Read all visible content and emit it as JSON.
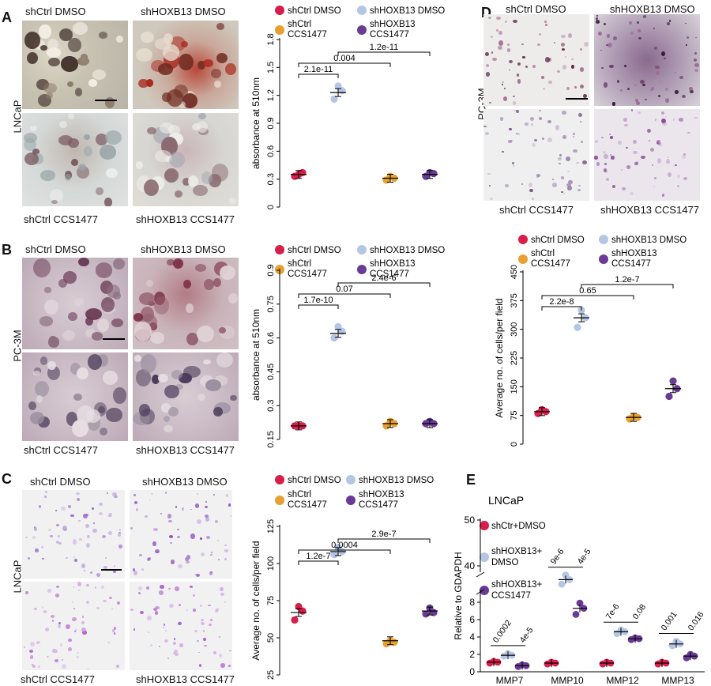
{
  "panels": {
    "A": "A",
    "B": "B",
    "C": "C",
    "D": "D",
    "E": "E"
  },
  "cell_lines": {
    "A": "LNCaP",
    "B": "PC-3M",
    "C": "LNCaP",
    "D": "PC-3M"
  },
  "photo_labels": {
    "ctrl_dmso": "shCtrl DMSO",
    "hox_dmso": "shHOXB13 DMSO",
    "ctrl_ccs": "shCtrl CCS1477",
    "hox_ccs": "shHOXB13 CCS1477"
  },
  "legend": {
    "ctrl_dmso": "shCtrl DMSO",
    "hox_dmso": "shHOXB13 DMSO",
    "ctrl_ccs_1": "shCtrl",
    "ctrl_ccs_2": "CCS1477",
    "hox_ccs_1": "shHOXB13",
    "hox_ccs_2": "CCS1477"
  },
  "legend_e": {
    "g1": "shCtr+DMSO",
    "g2a": "shHOXB13+",
    "g2b": "DMSO",
    "g3a": "shHOXB13+",
    "g3b": "CCS1477"
  },
  "colors": {
    "ctrl_dmso": "#d81e4a",
    "hox_dmso": "#b4c6e4",
    "ctrl_ccs": "#e8a030",
    "hox_ccs": "#6a3a96"
  },
  "chart_data": [
    {
      "id": "A",
      "type": "scatter",
      "ylabel": "absorbance at 510nm",
      "ylim": [
        0,
        1.8
      ],
      "ticks": [
        "0",
        "0.3",
        "0.6",
        "0.9",
        "1.2",
        "1.5",
        "1.8"
      ],
      "groups": [
        "shCtrl DMSO",
        "shHOXB13 DMSO",
        "shCtrl CCS1477",
        "shHOXB13 CCS1477"
      ],
      "means": [
        0.35,
        1.23,
        0.31,
        0.35
      ],
      "points": [
        [
          0.33,
          0.37,
          0.35
        ],
        [
          1.16,
          1.25,
          1.3
        ],
        [
          0.29,
          0.31,
          0.33
        ],
        [
          0.33,
          0.36,
          0.37
        ]
      ],
      "pvalues": [
        "2.1e-11",
        "0.004",
        "1.2e-11"
      ]
    },
    {
      "id": "B",
      "type": "scatter",
      "ylabel": "absorbance at 510nm",
      "ylim": [
        0.15,
        0.9
      ],
      "ticks": [
        "0.15",
        "0.3",
        "0.45",
        "0.6",
        "0.75",
        "0.9"
      ],
      "groups": [
        "shCtrl DMSO",
        "shHOXB13 DMSO",
        "shCtrl CCS1477",
        "shHOXB13 CCS1477"
      ],
      "means": [
        0.21,
        0.62,
        0.22,
        0.22
      ],
      "points": [
        [
          0.21,
          0.21,
          0.21
        ],
        [
          0.6,
          0.63,
          0.65
        ],
        [
          0.21,
          0.22,
          0.23
        ],
        [
          0.22,
          0.22,
          0.23
        ]
      ],
      "pvalues": [
        "1.7e-10",
        "0.07",
        "2.4e-6"
      ]
    },
    {
      "id": "C",
      "type": "scatter",
      "ylabel": "Average no. of cells/per field",
      "ylim": [
        25,
        125
      ],
      "ticks": [
        "25",
        "50",
        "75",
        "100",
        "125"
      ],
      "groups": [
        "shCtrl DMSO",
        "shHOXB13 DMSO",
        "shCtrl CCS1477",
        "shHOXB13 CCS1477"
      ],
      "means": [
        67,
        108,
        48,
        68
      ],
      "points": [
        [
          62,
          68,
          71
        ],
        [
          106,
          108,
          111
        ],
        [
          46,
          47,
          48
        ],
        [
          66,
          67,
          70
        ]
      ],
      "pvalues": [
        "1.2e-7",
        "0.0004",
        "2.9e-7"
      ]
    },
    {
      "id": "D",
      "type": "scatter",
      "ylabel": "Average no. of cells/per field",
      "ylim": [
        0,
        450
      ],
      "ticks": [
        "0",
        "75",
        "150",
        "225",
        "300",
        "375",
        "450"
      ],
      "groups": [
        "shCtrl DMSO",
        "shHOXB13 DMSO",
        "shCtrl CCS1477",
        "shHOXB13 CCS1477"
      ],
      "means": [
        85,
        330,
        70,
        145
      ],
      "points": [
        [
          80,
          85,
          90
        ],
        [
          305,
          330,
          350
        ],
        [
          66,
          70,
          72
        ],
        [
          125,
          145,
          165
        ]
      ],
      "pvalues": [
        "2.2e-8",
        "0.65",
        "1.2e-7"
      ]
    },
    {
      "id": "E",
      "type": "scatter",
      "title": "LNCaP",
      "ylabel": "Relative to GDAPDH",
      "lower_ticks": [
        "0",
        "2",
        "4",
        "6",
        "8"
      ],
      "upper_ticks": [
        "40",
        "50"
      ],
      "categories": [
        "MMP7",
        "MMP10",
        "MMP12",
        "MMP13"
      ],
      "groups": [
        "shCtr+DMSO",
        "shHOXB13+DMSO",
        "shHOXB13+CCS1477"
      ],
      "means": [
        [
          1.1,
          1.9,
          0.7
        ],
        [
          1.0,
          37,
          7.3
        ],
        [
          1.0,
          4.6,
          3.8
        ],
        [
          1.0,
          3.2,
          1.8
        ]
      ],
      "points": [
        [
          [
            1.0,
            1.1,
            1.2
          ],
          [
            1.8,
            1.9,
            2.1
          ],
          [
            0.6,
            0.7,
            0.8
          ]
        ],
        [
          [
            0.9,
            1.0,
            1.1
          ],
          [
            36,
            37,
            38
          ],
          [
            6.6,
            7.3,
            7.9
          ]
        ],
        [
          [
            0.9,
            1.0,
            1.1
          ],
          [
            4.4,
            4.6,
            4.8
          ],
          [
            3.7,
            3.8,
            3.9
          ]
        ],
        [
          [
            0.9,
            1.0,
            1.1
          ],
          [
            3.0,
            3.2,
            3.5
          ],
          [
            1.6,
            1.8,
            2.0
          ]
        ]
      ],
      "pvalues": [
        [
          "0.0002",
          "4e-5"
        ],
        [
          "9e-6",
          "4e-5"
        ],
        [
          "7e-6",
          "0.08"
        ],
        [
          "0.001",
          "0.016"
        ]
      ]
    }
  ]
}
